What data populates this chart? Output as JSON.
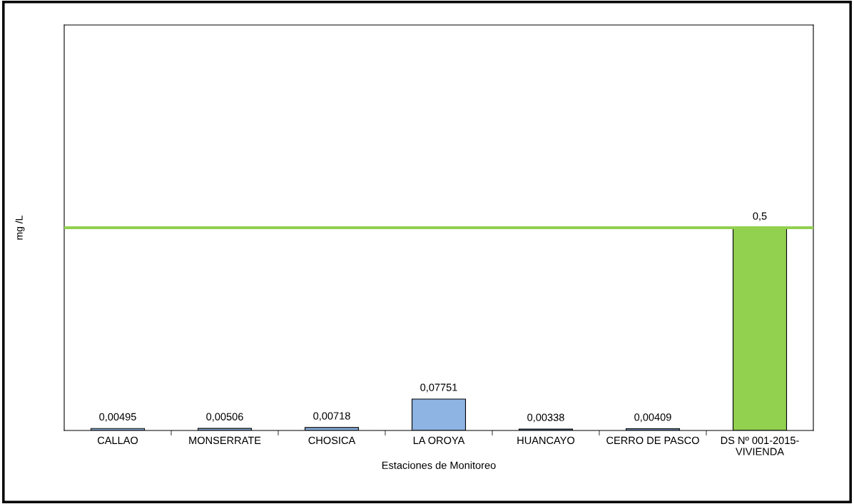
{
  "chart_data": {
    "type": "bar",
    "xlabel": "Estaciones de Monitoreo",
    "ylabel": "mg /L",
    "categories": [
      "CALLAO",
      "MONSERRATE",
      "CHOSICA",
      "LA OROYA",
      "HUANCAYO",
      "CERRO DE PASCO",
      "DS Nº 001-2015-\nVIVIENDA"
    ],
    "values": [
      0.00495,
      0.00506,
      0.00718,
      0.07751,
      0.00338,
      0.00409,
      0.5
    ],
    "colors": [
      "#8db4e2",
      "#8db4e2",
      "#8db4e2",
      "#8db4e2",
      "#8db4e2",
      "#8db4e2",
      "#92d050"
    ],
    "value_labels": [
      "0,00495",
      "0,00506",
      "0,00718",
      "0,07751",
      "0,00338",
      "0,00409",
      "0,5"
    ],
    "ylim": [
      0,
      1
    ],
    "tick_labels": "x",
    "ref_lines": [
      {
        "axis": "y",
        "value": 0.5,
        "color": "#92d050",
        "line_style": "solid"
      }
    ]
  }
}
